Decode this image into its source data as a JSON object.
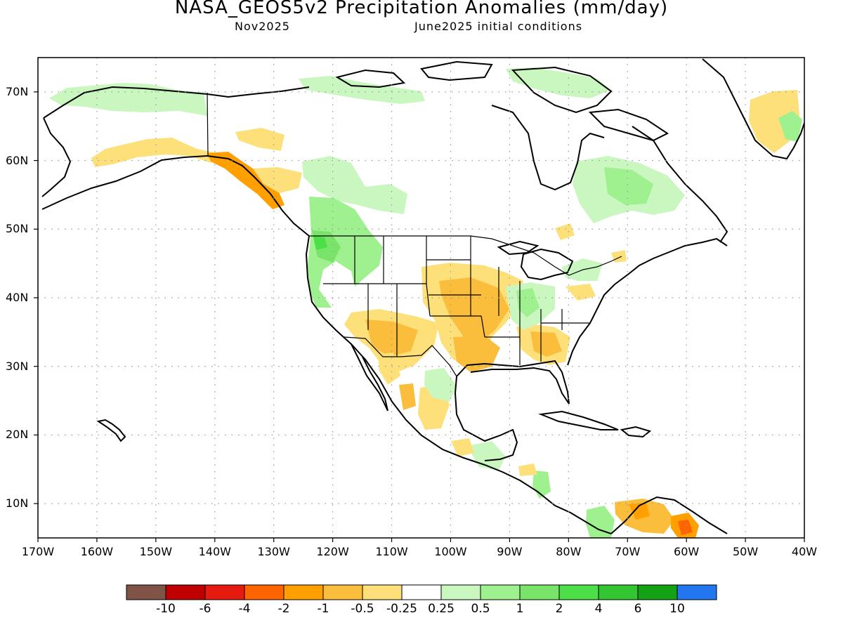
{
  "title": "NASA_GEOS5v2 Precipitation Anomalies (mm/day)",
  "subtitle_left": "Nov2025",
  "subtitle_right": "June2025 initial conditions",
  "map": {
    "region": "North America",
    "lon_range": [
      -170,
      -40
    ],
    "lat_range": [
      5,
      75
    ],
    "grid": true,
    "lat_ticks": [
      "10N",
      "20N",
      "30N",
      "40N",
      "50N",
      "60N",
      "70N"
    ],
    "lon_ticks": [
      "170W",
      "160W",
      "150W",
      "140W",
      "130W",
      "120W",
      "110W",
      "100W",
      "90W",
      "80W",
      "70W",
      "60W",
      "50W",
      "40W"
    ],
    "ocean_color": "#ffffff",
    "coastline_color": "#000000"
  },
  "colorbar": {
    "colors": [
      "#7f5447",
      "#c00000",
      "#e61a0f",
      "#ff6400",
      "#ff9f00",
      "#fbbe3c",
      "#fde07a",
      "#ffffff",
      "#c9f7bf",
      "#9ff08f",
      "#7ae46a",
      "#4ddf47",
      "#33c632",
      "#14a114",
      "#2277ee"
    ],
    "labels": [
      "-10",
      "-6",
      "-4",
      "-2",
      "-1",
      "-0.5",
      "-0.25",
      "0.25",
      "0.5",
      "1",
      "2",
      "4",
      "6",
      "10"
    ]
  }
}
